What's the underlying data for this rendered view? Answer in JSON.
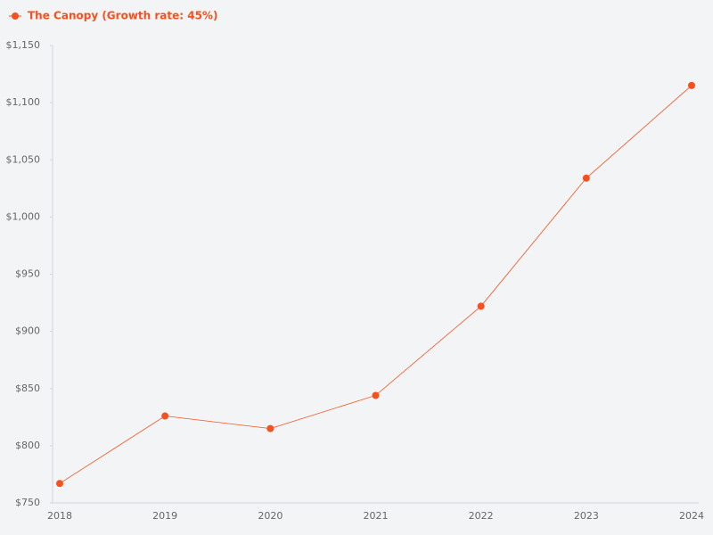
{
  "chart_data": {
    "type": "line",
    "categories": [
      "2018",
      "2019",
      "2020",
      "2021",
      "2022",
      "2023",
      "2024"
    ],
    "series": [
      {
        "name": "The Canopy (Growth rate: 45%)",
        "color": "#f4511e",
        "values": [
          767,
          826,
          815,
          844,
          922,
          1034,
          1115
        ]
      }
    ],
    "ylim": [
      750,
      1150
    ],
    "yticks": [
      {
        "value": 750,
        "label": "$750"
      },
      {
        "value": 800,
        "label": "$800"
      },
      {
        "value": 850,
        "label": "$850"
      },
      {
        "value": 900,
        "label": "$900"
      },
      {
        "value": 950,
        "label": "$950"
      },
      {
        "value": 1000,
        "label": "$1,000"
      },
      {
        "value": 1050,
        "label": "$1,050"
      },
      {
        "value": 1100,
        "label": "$1,100"
      },
      {
        "value": 1150,
        "label": "$1,150"
      }
    ],
    "grid": false,
    "legend": "top-left"
  }
}
